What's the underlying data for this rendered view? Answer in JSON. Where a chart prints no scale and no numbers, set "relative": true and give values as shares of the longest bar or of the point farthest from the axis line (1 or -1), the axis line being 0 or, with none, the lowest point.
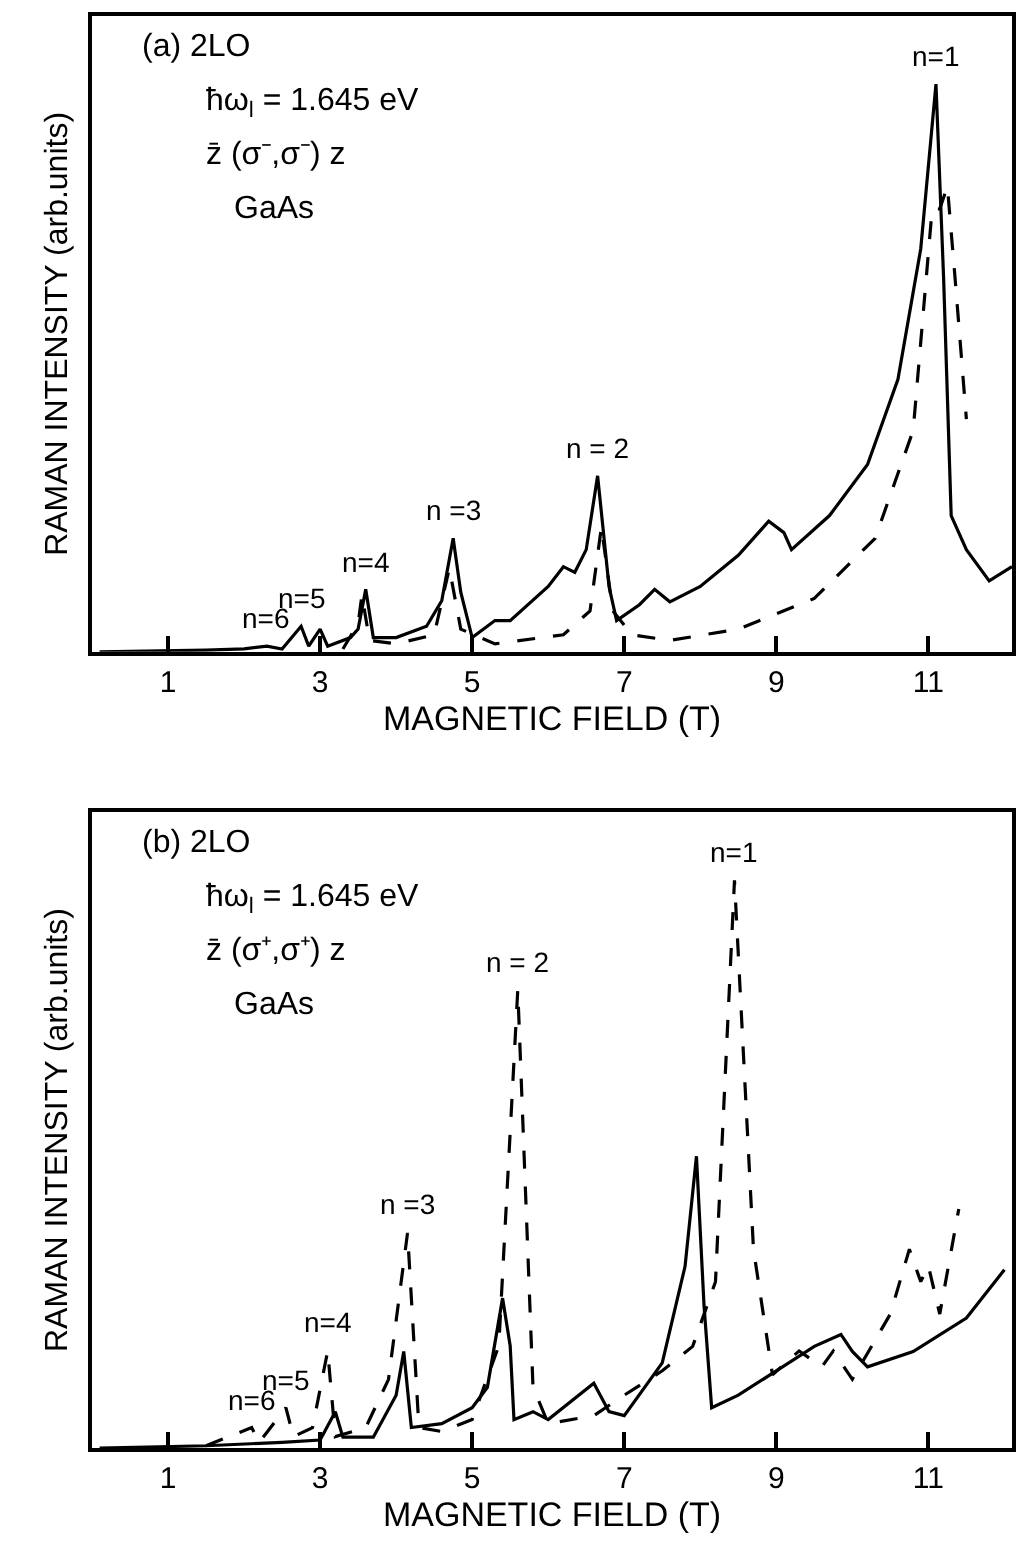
{
  "chart_data": [
    {
      "type": "line",
      "relative": true,
      "xlabel": "MAGNETIC FIELD (T)",
      "ylabel": "RAMAN INTENSITY (arb.units)",
      "xlim": [
        0,
        12.1
      ],
      "xticks": [
        1,
        3,
        5,
        7,
        9,
        11
      ],
      "series": [
        {
          "color": "#000000",
          "line_style": "solid",
          "x": [
            0.1,
            1.5,
            2.0,
            2.3,
            2.5,
            2.75,
            2.85,
            3.0,
            3.1,
            3.4,
            3.5,
            3.6,
            3.7,
            4.0,
            4.4,
            4.6,
            4.75,
            4.85,
            5.0,
            5.3,
            5.5,
            6.0,
            6.2,
            6.35,
            6.5,
            6.65,
            6.8,
            6.9,
            7.2,
            7.4,
            7.6,
            8.0,
            8.5,
            8.9,
            9.1,
            9.2,
            9.7,
            10.2,
            10.6,
            10.9,
            11.1,
            11.2,
            11.3,
            11.5,
            11.8,
            12.1
          ],
          "values": [
            0,
            0.003,
            0.005,
            0.01,
            0.005,
            0.045,
            0.01,
            0.04,
            0.01,
            0.025,
            0.04,
            0.11,
            0.025,
            0.025,
            0.045,
            0.09,
            0.2,
            0.105,
            0.025,
            0.055,
            0.055,
            0.115,
            0.15,
            0.14,
            0.18,
            0.31,
            0.115,
            0.055,
            0.083,
            0.11,
            0.088,
            0.115,
            0.17,
            0.23,
            0.21,
            0.18,
            0.24,
            0.33,
            0.48,
            0.71,
            1.0,
            0.66,
            0.24,
            0.18,
            0.125,
            0.15
          ]
        },
        {
          "color": "#000000",
          "line_style": "dashed",
          "x": [
            3.3,
            3.5,
            3.55,
            3.65,
            4.0,
            4.5,
            4.7,
            4.85,
            5.3,
            6.2,
            6.55,
            6.7,
            6.85,
            7.1,
            7.6,
            8.5,
            9.5,
            10.3,
            10.8,
            11.05,
            11.15,
            11.25,
            11.35,
            11.5
          ],
          "values": [
            0.005,
            0.05,
            0.1,
            0.02,
            0.014,
            0.03,
            0.147,
            0.04,
            0.014,
            0.03,
            0.072,
            0.22,
            0.072,
            0.03,
            0.02,
            0.04,
            0.094,
            0.2,
            0.39,
            0.78,
            0.78,
            0.82,
            0.66,
            0.41
          ]
        }
      ],
      "annotations": [
        "(a) 2LO",
        "ħω$_{l}$ = 1.645 eV",
        "z̄ (σ⁻,σ⁻) z",
        "GaAs",
        {
          "text": "n=1",
          "x": 11.1,
          "y": 1.0
        },
        {
          "text": "n = 2",
          "x": 6.65,
          "y": 0.31
        },
        {
          "text": "n =3",
          "x": 4.75,
          "y": 0.2
        },
        {
          "text": "n=4",
          "x": 3.6,
          "y": 0.11
        },
        {
          "text": "n=5",
          "x": 2.75,
          "y": 0.045
        },
        {
          "text": "n=6",
          "x": 2.3,
          "y": 0.01
        }
      ]
    },
    {
      "type": "line",
      "relative": true,
      "xlabel": "MAGNETIC FIELD (T)",
      "ylabel": "RAMAN INTENSITY (arb.units)",
      "xlim": [
        0,
        12.1
      ],
      "xticks": [
        1,
        3,
        5,
        7,
        9,
        11
      ],
      "series": [
        {
          "color": "#000000",
          "line_style": "solid",
          "x": [
            0.1,
            1.5,
            2.5,
            3.0,
            3.2,
            3.3,
            3.7,
            4.0,
            4.1,
            4.2,
            4.6,
            5.0,
            5.2,
            5.4,
            5.5,
            5.55,
            5.8,
            6.0,
            6.6,
            6.8,
            7.0,
            7.5,
            7.8,
            7.95,
            8.05,
            8.15,
            8.5,
            9.0,
            9.5,
            9.85,
            10.0,
            10.2,
            10.8,
            11.5,
            12.0
          ],
          "values": [
            0,
            0.004,
            0.01,
            0.014,
            0.064,
            0.019,
            0.019,
            0.093,
            0.17,
            0.036,
            0.043,
            0.071,
            0.107,
            0.264,
            0.18,
            0.05,
            0.064,
            0.05,
            0.114,
            0.064,
            0.057,
            0.15,
            0.32,
            0.514,
            0.25,
            0.071,
            0.093,
            0.136,
            0.179,
            0.2,
            0.17,
            0.143,
            0.17,
            0.229,
            0.314
          ]
        },
        {
          "color": "#000000",
          "line_style": "dashed",
          "x": [
            1.5,
            2.1,
            2.2,
            2.55,
            2.65,
            2.9,
            3.1,
            3.2,
            3.6,
            3.9,
            4.15,
            4.3,
            4.6,
            5.0,
            5.35,
            5.6,
            5.8,
            6.0,
            6.6,
            7.0,
            7.5,
            7.9,
            8.2,
            8.45,
            8.7,
            8.95,
            9.3,
            9.6,
            9.75,
            10.0,
            10.5,
            10.75,
            10.9,
            11.0,
            11.15,
            11.4
          ],
          "values": [
            0.004,
            0.036,
            0.01,
            0.071,
            0.02,
            0.036,
            0.171,
            0.02,
            0.036,
            0.121,
            0.379,
            0.036,
            0.029,
            0.05,
            0.18,
            0.807,
            0.107,
            0.043,
            0.057,
            0.093,
            0.136,
            0.179,
            0.293,
            1.0,
            0.35,
            0.129,
            0.171,
            0.143,
            0.171,
            0.121,
            0.236,
            0.35,
            0.293,
            0.321,
            0.236,
            0.421
          ]
        }
      ],
      "annotations": [
        "(b) 2LO",
        "ħω$_{l}$ = 1.645 eV",
        "z̄ (σ⁺,σ⁺) z",
        "GaAs",
        {
          "text": "n=1",
          "x": 8.45,
          "y": 1.0
        },
        {
          "text": "n = 2",
          "x": 5.6,
          "y": 0.807
        },
        {
          "text": "n =3",
          "x": 4.15,
          "y": 0.379
        },
        {
          "text": "n=4",
          "x": 3.1,
          "y": 0.171
        },
        {
          "text": "n=5",
          "x": 2.55,
          "y": 0.071
        },
        {
          "text": "n=6",
          "x": 2.1,
          "y": 0.036
        }
      ]
    }
  ]
}
